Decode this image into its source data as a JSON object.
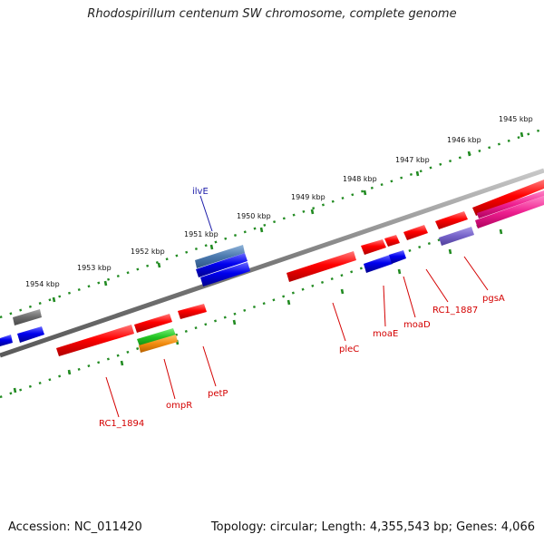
{
  "title": "Rhodospirillum centenum SW chromosome, complete genome",
  "footer": {
    "accession": "Accession: NC_011420",
    "summary": "Topology: circular; Length: 4,355,543 bp; Genes: 4,066"
  },
  "colors": {
    "backbone": "#808080",
    "ruler_dots": "#228b22",
    "gene_red": "#ff0000",
    "gene_blue": "#0000ee",
    "gene_label_red": "#d40000",
    "gene_label_blue": "#1a1aa8"
  },
  "kbp_labels": [
    "1954 kbp",
    "1953 kbp",
    "1952 kbp",
    "1951 kbp",
    "1950 kbp",
    "1949 kbp",
    "1948 kbp",
    "1947 kbp",
    "1946 kbp",
    "1945 kbp"
  ],
  "gene_labels": {
    "ilvE": "ilvE",
    "RC1_1894": "RC1_1894",
    "ompR": "ompR",
    "petP": "petP",
    "pleC": "pleC",
    "moaE": "moaE",
    "moaD": "moaD",
    "RC1_1887": "RC1_1887",
    "pgsA": "pgsA"
  }
}
